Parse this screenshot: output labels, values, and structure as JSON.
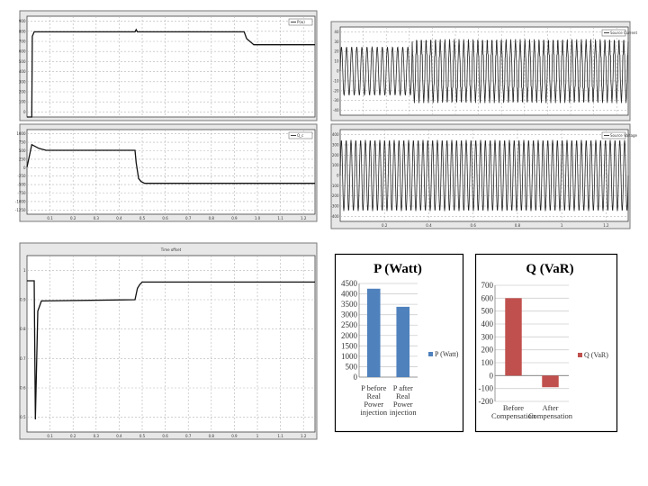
{
  "chart_data": [
    {
      "type": "line",
      "legend": "P(w)",
      "legend_placement": "top-right",
      "grid": true,
      "ylim": [
        0,
        900
      ],
      "xlim": [
        0,
        1.2
      ],
      "yticks": [
        "900",
        "800",
        "700",
        "600",
        "500",
        "400",
        "300",
        "200",
        "100",
        "0"
      ],
      "xticks": [],
      "points": [
        [
          0,
          0
        ],
        [
          0.02,
          0
        ],
        [
          0.022,
          720
        ],
        [
          0.03,
          760
        ],
        [
          0.05,
          760
        ],
        [
          0.45,
          760
        ],
        [
          0.455,
          780
        ],
        [
          0.46,
          760
        ],
        [
          0.905,
          760
        ],
        [
          0.915,
          700
        ],
        [
          0.945,
          645
        ],
        [
          1.2,
          645
        ]
      ]
    },
    {
      "type": "line",
      "legend": "Q_c",
      "legend_placement": "top-right",
      "grid": true,
      "ylim": [
        -1250,
        1000
      ],
      "xlim": [
        0,
        1.2
      ],
      "yticks": [
        "1000",
        "750",
        "500",
        "250",
        "0",
        "-250",
        "-500",
        "-750",
        "-1000",
        "-1250"
      ],
      "xticks": [
        "0.1",
        "0.2",
        "0.3",
        "0.4",
        "0.5",
        "0.6",
        "0.7",
        "0.8",
        "0.9",
        "1.0",
        "1.1",
        "1.2"
      ],
      "points": [
        [
          0,
          0
        ],
        [
          0.02,
          600
        ],
        [
          0.05,
          500
        ],
        [
          0.08,
          450
        ],
        [
          0.45,
          450
        ],
        [
          0.455,
          120
        ],
        [
          0.465,
          -300
        ],
        [
          0.475,
          -380
        ],
        [
          0.49,
          -430
        ],
        [
          1.2,
          -430
        ]
      ]
    },
    {
      "type": "line",
      "legend": "Source Current",
      "legend_placement": "top-right",
      "grid": true,
      "ylim": [
        -40,
        40
      ],
      "xlim": [
        0,
        1.2
      ],
      "yticks": [
        "40",
        "30",
        "20",
        "10",
        "0",
        "-10",
        "-20",
        "-30",
        "-40"
      ],
      "xticks": []
    },
    {
      "type": "line",
      "legend": "Source Voltage",
      "legend_placement": "top-right",
      "grid": true,
      "ylim": [
        -400,
        400
      ],
      "xlim": [
        0,
        1.2
      ],
      "yticks": [
        "400",
        "300",
        "200",
        "100",
        "0",
        "-100",
        "-200",
        "-300",
        "-400"
      ],
      "xticks": [
        "0.2",
        "0.4",
        "0.6",
        "0.8",
        "1",
        "1.2"
      ]
    },
    {
      "type": "line",
      "title": "Time offset",
      "grid": true,
      "ylim": [
        0.4,
        1.1
      ],
      "xlim": [
        0,
        1.2
      ],
      "yticks": [
        "1",
        "0.9",
        "0.8",
        "0.7",
        "0.6",
        "0.5"
      ],
      "xticks": [
        "0.1",
        "0.2",
        "0.3",
        "0.4",
        "0.5",
        "0.6",
        "0.7",
        "0.8",
        "0.9",
        "1",
        "1.1",
        "1.2"
      ],
      "points": [
        [
          0,
          1.0
        ],
        [
          0.03,
          1.0
        ],
        [
          0.035,
          0.45
        ],
        [
          0.045,
          0.88
        ],
        [
          0.06,
          0.92
        ],
        [
          0.45,
          0.925
        ],
        [
          0.46,
          0.97
        ],
        [
          0.47,
          0.985
        ],
        [
          0.48,
          0.995
        ],
        [
          1.2,
          0.995
        ]
      ]
    },
    {
      "type": "bar",
      "title": "P (Watt)",
      "categories": [
        "P before Real Power injection",
        "P after Real Power injection"
      ],
      "category_lines": [
        [
          "P before",
          "Real",
          "Power",
          "injection"
        ],
        [
          "P after",
          "Real",
          "Power",
          "injection"
        ]
      ],
      "series": [
        {
          "name": "P (Watt)",
          "values": [
            4250,
            3380
          ],
          "color": "#4f81bd"
        }
      ],
      "ylim": [
        0,
        4500
      ],
      "yticks": [
        0,
        500,
        1000,
        1500,
        2000,
        2500,
        3000,
        3500,
        4000,
        4500
      ],
      "legend_placement": "right"
    },
    {
      "type": "bar",
      "title": "Q (VaR)",
      "categories": [
        "Before Compensation",
        "After Compensation"
      ],
      "category_lines": [
        [
          "Before",
          "Compensation"
        ],
        [
          "After",
          "Compensation"
        ]
      ],
      "series": [
        {
          "name": "Q (VaR)",
          "values": [
            600,
            -90
          ],
          "color": "#c0504d"
        }
      ],
      "ylim": [
        -200,
        700
      ],
      "yticks": [
        -200,
        -100,
        0,
        100,
        200,
        300,
        400,
        500,
        600,
        700
      ],
      "legend_placement": "right"
    }
  ]
}
